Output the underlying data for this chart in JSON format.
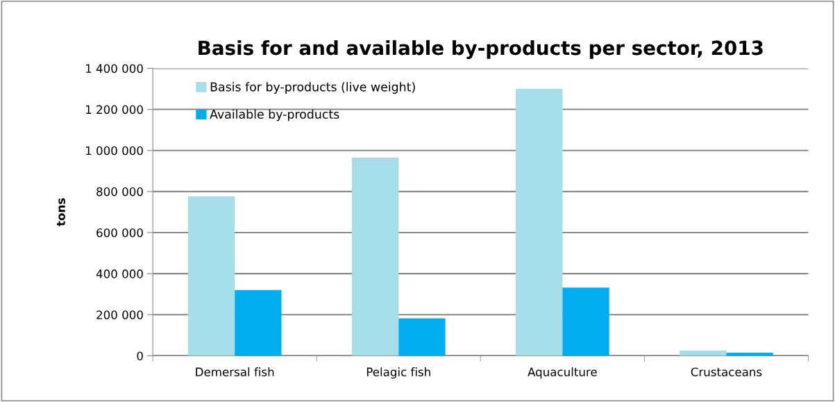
{
  "chart_data": {
    "type": "bar",
    "title": "Basis for and available by-products per sector, 2013",
    "ylabel": "tons",
    "categories": [
      "Demersal fish",
      "Pelagic fish",
      "Aquaculture",
      "Crustaceans"
    ],
    "series": [
      {
        "name": "Basis for by-products (live weight)",
        "color": "#a5dee9",
        "values": [
          777000,
          965000,
          1301000,
          26000
        ]
      },
      {
        "name": "Available by-products",
        "color": "#00adee",
        "values": [
          320000,
          182000,
          332000,
          15000
        ]
      }
    ],
    "ylim": [
      0,
      1400000
    ],
    "yticks": [
      {
        "value": 0,
        "label": "0"
      },
      {
        "value": 200000,
        "label": "200 000"
      },
      {
        "value": 400000,
        "label": "400 000"
      },
      {
        "value": 600000,
        "label": "600 000"
      },
      {
        "value": 800000,
        "label": "800 000"
      },
      {
        "value": 1000000,
        "label": "1 000 000"
      },
      {
        "value": 1200000,
        "label": "1 200 000"
      },
      {
        "value": 1400000,
        "label": "1 400 000"
      }
    ],
    "grid": "y",
    "legend": "top left"
  }
}
